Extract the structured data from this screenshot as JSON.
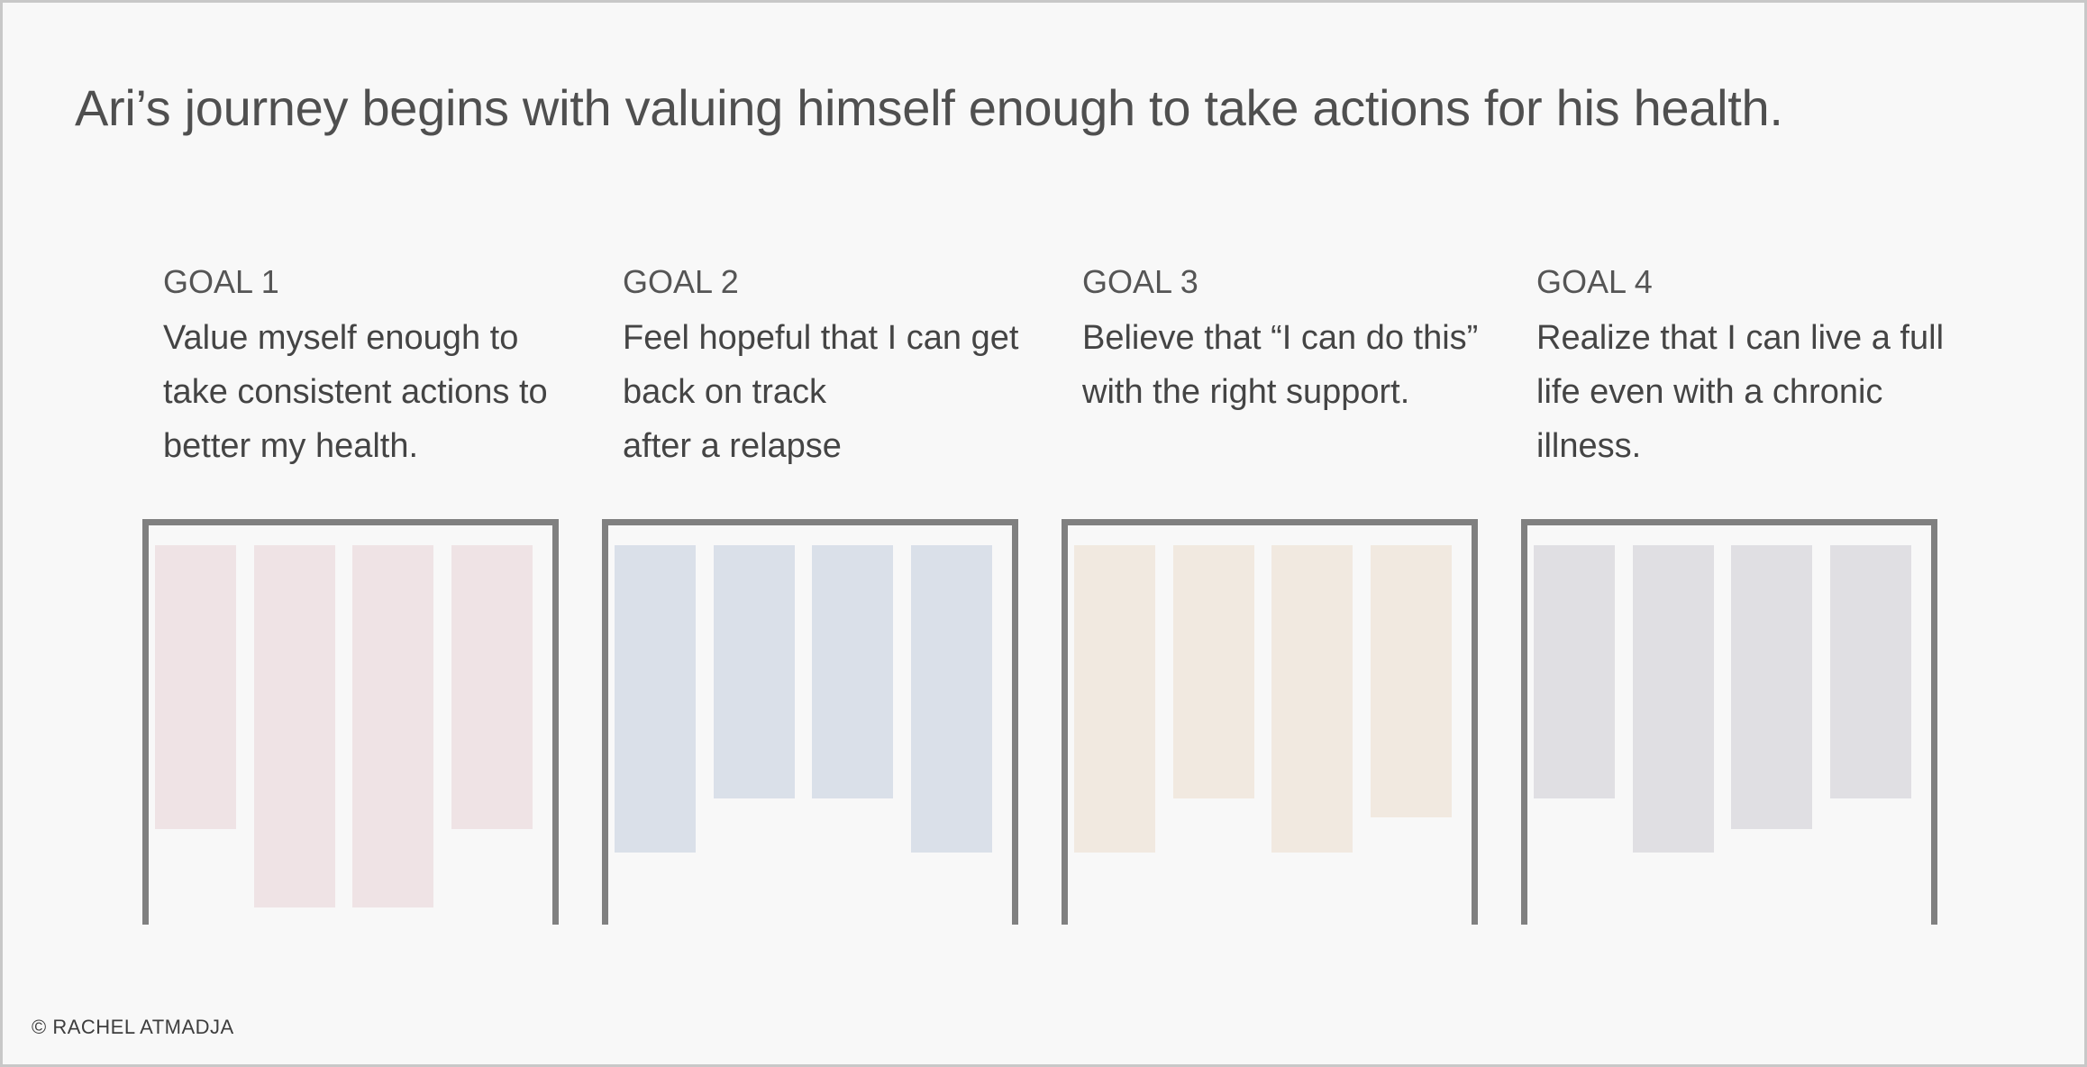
{
  "title": "Ari’s journey begins with valuing himself enough to take actions for his health.",
  "copyright": "© RACHEL ATMADJA",
  "goals": [
    {
      "label": "GOAL 1",
      "text": "Value myself enough to\ntake consistent actions to\nbetter my health.",
      "color": "#efe3e5",
      "bar_levels": [
        0.73,
        0.93,
        0.93,
        0.73
      ]
    },
    {
      "label": "GOAL 2",
      "text": "Feel hopeful that I can get\nback on track\nafter a relapse",
      "color": "#dae0e9",
      "bar_levels": [
        0.79,
        0.65,
        0.65,
        0.79
      ]
    },
    {
      "label": "GOAL 3",
      "text": "Believe that “I can do this”\nwith the right support.",
      "color": "#f1e9e0",
      "bar_levels": [
        0.79,
        0.65,
        0.79,
        0.7
      ]
    },
    {
      "label": "GOAL 4",
      "text": "Realize that I can live a full\nlife even with a chronic\nillness.",
      "color": "#e0dfe3",
      "bar_levels": [
        0.65,
        0.79,
        0.73,
        0.65
      ]
    }
  ]
}
